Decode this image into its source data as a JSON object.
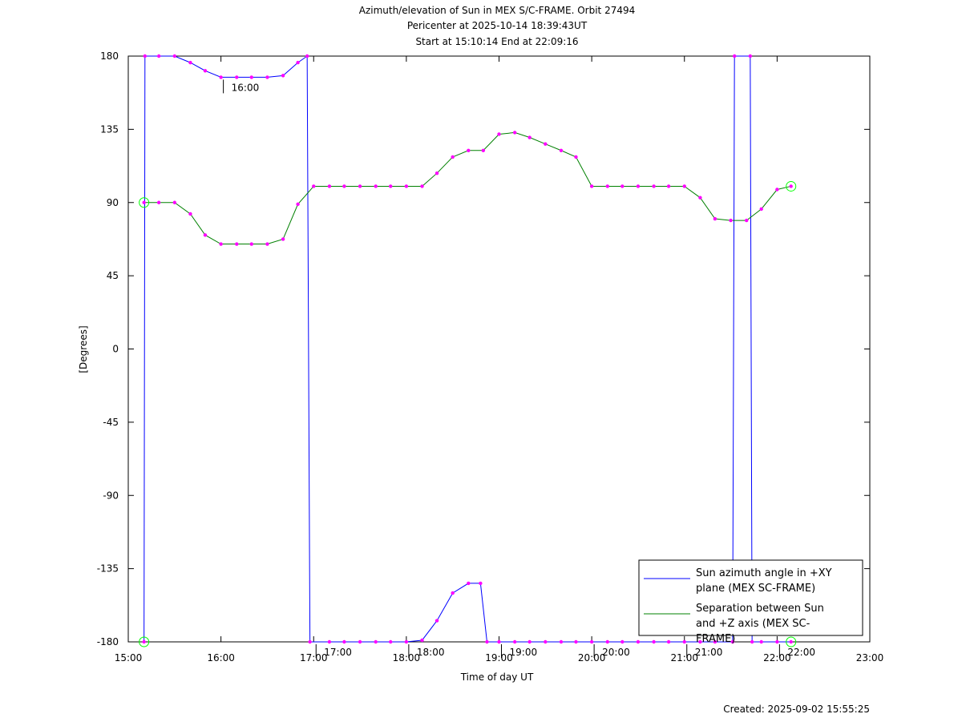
{
  "chart_data": {
    "type": "line",
    "title": "Azimuth/elevation of Sun in MEX S/C-FRAME.  Orbit 27494",
    "subtitle": "Pericenter at 2025-10-14 18:39:43UT",
    "subtitle2": "Start at 15:10:14 End at 22:09:16",
    "xlabel": "Time of day UT",
    "ylabel": "[Degrees]",
    "footnote": "Created: 2025-09-02 15:55:25",
    "xlim": [
      15,
      23
    ],
    "xticks": [
      {
        "value": 15,
        "label": "15:00"
      },
      {
        "value": 16,
        "label": "16:00"
      },
      {
        "value": 17,
        "label": "17:00"
      },
      {
        "value": 18,
        "label": "18:00"
      },
      {
        "value": 19,
        "label": "19:00"
      },
      {
        "value": 20,
        "label": "20:00"
      },
      {
        "value": 21,
        "label": "21:00"
      },
      {
        "value": 22,
        "label": "22:00"
      },
      {
        "value": 23,
        "label": "23:00"
      }
    ],
    "ylim": [
      -180,
      180
    ],
    "yticks": [
      180,
      135,
      90,
      45,
      0,
      -45,
      -90,
      -135,
      -180
    ],
    "marker_color": "#ff00ff",
    "endpoint_marker_color": "#00ff00",
    "legend": "lower right",
    "series": [
      {
        "name": "Sun azimuth angle in +XY plane (MEX SC-FRAME)",
        "color": "#0000ff",
        "x": [
          15.17,
          15.18,
          15.33,
          15.5,
          15.67,
          15.83,
          16.0,
          16.17,
          16.33,
          16.5,
          16.67,
          16.83,
          16.93,
          16.96,
          17.17,
          17.33,
          17.5,
          17.67,
          17.83,
          18.0,
          18.17,
          18.33,
          18.5,
          18.67,
          18.8,
          18.87,
          19.0,
          19.17,
          19.33,
          19.5,
          19.67,
          19.83,
          20.0,
          20.17,
          20.33,
          20.5,
          20.67,
          20.83,
          21.0,
          21.17,
          21.33,
          21.52,
          21.54,
          21.71,
          21.73,
          21.83,
          22.0,
          22.15
        ],
        "values": [
          -180,
          180,
          180,
          180,
          176,
          171,
          167,
          167,
          167,
          167,
          168,
          176,
          180,
          -180,
          -180,
          -180,
          -180,
          -180,
          -180,
          -180,
          -179,
          -167,
          -150,
          -144,
          -144,
          -180,
          -180,
          -180,
          -180,
          -180,
          -180,
          -180,
          -180,
          -180,
          -180,
          -180,
          -180,
          -180,
          -180,
          -180,
          -180,
          -180,
          180,
          180,
          -180,
          -180,
          -180,
          -180
        ]
      },
      {
        "name": "Separation between Sun and +Z axis (MEX SC-FRAME)",
        "color": "#008000",
        "x": [
          15.17,
          15.33,
          15.5,
          15.67,
          15.83,
          16.0,
          16.17,
          16.33,
          16.5,
          16.67,
          16.83,
          17.0,
          17.17,
          17.33,
          17.5,
          17.67,
          17.83,
          18.0,
          18.17,
          18.33,
          18.5,
          18.67,
          18.83,
          19.0,
          19.17,
          19.33,
          19.5,
          19.67,
          19.83,
          20.0,
          20.17,
          20.33,
          20.5,
          20.67,
          20.83,
          21.0,
          21.17,
          21.33,
          21.5,
          21.67,
          21.83,
          22.0,
          22.15
        ],
        "values": [
          90,
          90,
          90,
          83,
          70,
          64.5,
          64.5,
          64.5,
          64.5,
          67.5,
          89,
          100,
          100,
          100,
          100,
          100,
          100,
          100,
          100,
          108,
          118,
          122,
          122,
          132,
          133,
          130,
          126,
          122,
          118,
          100,
          100,
          100,
          100,
          100,
          100,
          100,
          93,
          80,
          79,
          79,
          86,
          98,
          100
        ]
      }
    ],
    "annotations": [
      {
        "x": 16.0,
        "y": 167,
        "text": "16:00"
      },
      {
        "x": 17.0,
        "y": -180,
        "text": "17:00"
      },
      {
        "x": 18.0,
        "y": -180,
        "text": "18:00"
      },
      {
        "x": 19.0,
        "y": -180,
        "text": "19:00"
      },
      {
        "x": 20.0,
        "y": -180,
        "text": "20:00"
      },
      {
        "x": 21.0,
        "y": -180,
        "text": "21:00"
      },
      {
        "x": 22.0,
        "y": -180,
        "text": "22:00"
      }
    ]
  }
}
